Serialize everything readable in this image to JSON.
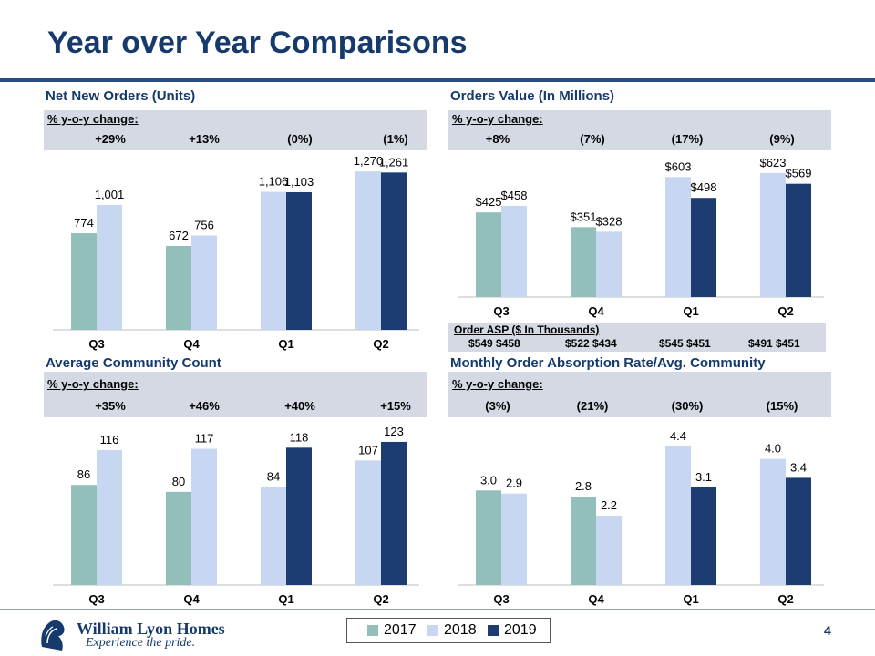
{
  "slide": {
    "title": "Year over Year Comparisons",
    "page_number": "4"
  },
  "colors": {
    "y2017": "#93bfba",
    "y2018": "#c7d7f2",
    "y2019": "#1c3c72",
    "title": "#163a6c",
    "band": "#d4d9e3"
  },
  "panels": {
    "net_orders": {
      "title": "Net New Orders (Units)",
      "yoy_label": "% y-o-y change:",
      "yoy": [
        "+29%",
        "+13%",
        "(0%)",
        "(1%)"
      ]
    },
    "orders_value": {
      "title": "Orders Value (In Millions)",
      "yoy_label": "% y-o-y change:",
      "yoy": [
        "+8%",
        "(7%)",
        "(17%)",
        "(9%)"
      ]
    },
    "community": {
      "title": "Average Community Count",
      "yoy_label": "% y-o-y change:",
      "yoy": [
        "+35%",
        "+46%",
        "+40%",
        "+15%"
      ]
    },
    "absorption": {
      "title": "Monthly Order Absorption Rate/Avg. Community",
      "yoy_label": "% y-o-y change:",
      "yoy": [
        "(3%)",
        "(21%)",
        "(30%)",
        "(15%)"
      ]
    }
  },
  "asp": {
    "label": "Order ASP ($ In Thousands)",
    "values": [
      "$549  $458",
      "$522  $434",
      "$545  $451",
      "$491  $451"
    ]
  },
  "legend": {
    "items": [
      "2017",
      "2018",
      "2019"
    ]
  },
  "logo": {
    "name": "William Lyon Homes",
    "tagline": "Experience the pride."
  },
  "chart_data": [
    {
      "id": "net_orders",
      "type": "bar",
      "title": "Net New Orders (Units)",
      "categories": [
        "Q3",
        "Q4",
        "Q1",
        "Q2"
      ],
      "ylim": [
        0,
        1300
      ],
      "bars": [
        [
          {
            "year": "2017",
            "value": 774,
            "label": "774"
          },
          {
            "year": "2018",
            "value": 1001,
            "label": "1,001"
          }
        ],
        [
          {
            "year": "2017",
            "value": 672,
            "label": "672"
          },
          {
            "year": "2018",
            "value": 756,
            "label": "756"
          }
        ],
        [
          {
            "year": "2018",
            "value": 1106,
            "label": "1,106"
          },
          {
            "year": "2019",
            "value": 1103,
            "label": "1,103"
          }
        ],
        [
          {
            "year": "2018",
            "value": 1270,
            "label": "1,270"
          },
          {
            "year": "2019",
            "value": 1261,
            "label": "1,261"
          }
        ]
      ]
    },
    {
      "id": "orders_value",
      "type": "bar",
      "title": "Orders Value (In Millions)",
      "categories": [
        "Q3",
        "Q4",
        "Q1",
        "Q2"
      ],
      "ylim": [
        0,
        650
      ],
      "bars": [
        [
          {
            "year": "2017",
            "value": 425,
            "label": "$425"
          },
          {
            "year": "2018",
            "value": 458,
            "label": "$458"
          }
        ],
        [
          {
            "year": "2017",
            "value": 351,
            "label": "$351"
          },
          {
            "year": "2018",
            "value": 328,
            "label": "$328"
          }
        ],
        [
          {
            "year": "2018",
            "value": 603,
            "label": "$603"
          },
          {
            "year": "2019",
            "value": 498,
            "label": "$498"
          }
        ],
        [
          {
            "year": "2018",
            "value": 623,
            "label": "$623"
          },
          {
            "year": "2019",
            "value": 569,
            "label": "$569"
          }
        ]
      ]
    },
    {
      "id": "community",
      "type": "bar",
      "title": "Average Community Count",
      "categories": [
        "Q3",
        "Q4",
        "Q1",
        "Q2"
      ],
      "ylim": [
        0,
        130
      ],
      "bars": [
        [
          {
            "year": "2017",
            "value": 86,
            "label": "86"
          },
          {
            "year": "2018",
            "value": 116,
            "label": "116"
          }
        ],
        [
          {
            "year": "2017",
            "value": 80,
            "label": "80"
          },
          {
            "year": "2018",
            "value": 117,
            "label": "117"
          }
        ],
        [
          {
            "year": "2018",
            "value": 84,
            "label": "84"
          },
          {
            "year": "2019",
            "value": 118,
            "label": "118"
          }
        ],
        [
          {
            "year": "2018",
            "value": 107,
            "label": "107"
          },
          {
            "year": "2019",
            "value": 123,
            "label": "123"
          }
        ]
      ]
    },
    {
      "id": "absorption",
      "type": "bar",
      "title": "Monthly Order Absorption Rate/Avg. Community",
      "categories": [
        "Q3",
        "Q4",
        "Q1",
        "Q2"
      ],
      "ylim": [
        0,
        4.8
      ],
      "bars": [
        [
          {
            "year": "2017",
            "value": 3.0,
            "label": "3.0"
          },
          {
            "year": "2018",
            "value": 2.9,
            "label": "2.9"
          }
        ],
        [
          {
            "year": "2017",
            "value": 2.8,
            "label": "2.8"
          },
          {
            "year": "2018",
            "value": 2.2,
            "label": "2.2"
          }
        ],
        [
          {
            "year": "2018",
            "value": 4.4,
            "label": "4.4"
          },
          {
            "year": "2019",
            "value": 3.1,
            "label": "3.1"
          }
        ],
        [
          {
            "year": "2018",
            "value": 4.0,
            "label": "4.0"
          },
          {
            "year": "2019",
            "value": 3.4,
            "label": "3.4"
          }
        ]
      ]
    }
  ]
}
